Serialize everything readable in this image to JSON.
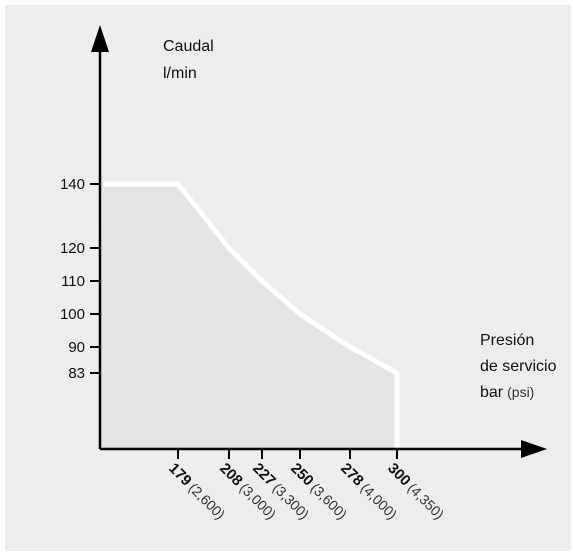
{
  "chart_data": {
    "type": "line",
    "y_label_line1": "Caudal",
    "y_label_line2": "l/min",
    "x_label_line1": "Presión",
    "x_label_line2": "de servicio",
    "x_label_line3_bold": "bar",
    "x_label_line3_unit": "(psi)",
    "y_ticks": [
      "140",
      "120",
      "110",
      "100",
      "90",
      "83"
    ],
    "x_ticks": [
      {
        "bar": "179",
        "psi": "(2,600)"
      },
      {
        "bar": "208",
        "psi": "(3,000)"
      },
      {
        "bar": "227",
        "psi": "(3,300)"
      },
      {
        "bar": "250",
        "psi": "(3,600)"
      },
      {
        "bar": "278",
        "psi": "(4,000)"
      },
      {
        "bar": "300",
        "psi": "(4,350)"
      }
    ],
    "series": [
      {
        "points": [
          [
            136,
            140
          ],
          [
            179,
            140
          ],
          [
            208,
            120
          ],
          [
            227,
            110
          ],
          [
            250,
            100
          ],
          [
            278,
            90
          ],
          [
            300,
            83
          ],
          [
            300,
            0
          ]
        ]
      }
    ],
    "grid": "dotted guide lines at tick values",
    "colors": {
      "background": "#ededed",
      "curve": "#ffffff",
      "axis": "#000000"
    }
  }
}
